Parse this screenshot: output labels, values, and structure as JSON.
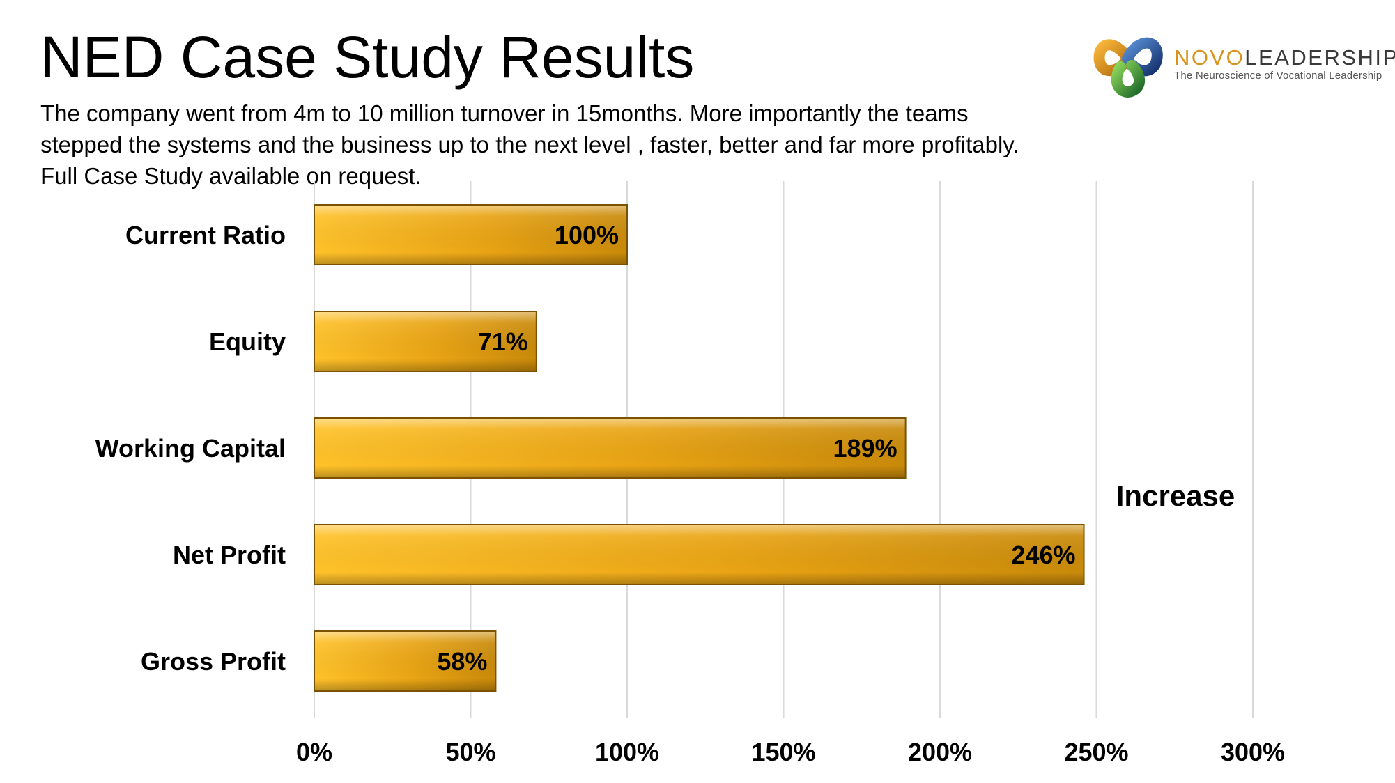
{
  "slide": {
    "title": "NED Case Study Results",
    "description_lines": [
      "The company went from 4m to 10 million turnover in 15months. More importantly the teams",
      "stepped the systems and the business  up to the next level , faster, better and far more profitably.",
      "Full Case Study available on request."
    ]
  },
  "logo": {
    "name_part1": "NOVO",
    "name_part2": "LEADERSHIP",
    "tagline": "The Neuroscience of Vocational Leadership",
    "colors": {
      "orange": "#d9921b",
      "green": "#3f9b3a",
      "blue": "#1f4f9a",
      "text": "#3a3a3a"
    }
  },
  "chart_data": {
    "type": "bar",
    "orientation": "horizontal",
    "title": "",
    "categories": [
      "Current Ratio",
      "Equity",
      "Working Capital",
      "Net Profit",
      "Gross Profit"
    ],
    "values": [
      100,
      71,
      189,
      246,
      58
    ],
    "data_labels": [
      "100%",
      "71%",
      "189%",
      "246%",
      "58%"
    ],
    "value_format": "percent",
    "xlim": [
      0,
      300
    ],
    "x_ticks": [
      0,
      50,
      100,
      150,
      200,
      250,
      300
    ],
    "x_tick_labels": [
      "0%",
      "50%",
      "100%",
      "150%",
      "200%",
      "250%",
      "300%"
    ],
    "annotation": "Increase",
    "grid": "vertical",
    "legend": "none",
    "colors": {
      "bar_light": "#ffc22a",
      "bar_dark": "#c98a0a",
      "bar_edge": "#7a5200",
      "grid": "#d9d9d9"
    }
  }
}
